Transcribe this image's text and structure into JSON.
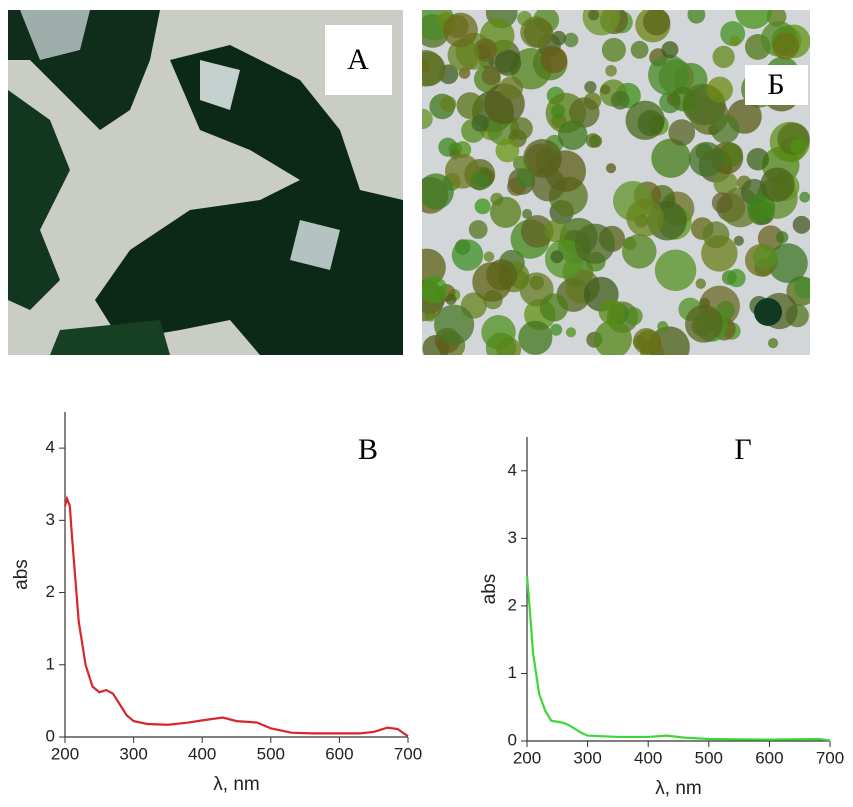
{
  "photos": [
    {
      "label": "А"
    },
    {
      "label": "Б"
    }
  ],
  "chart_data": [
    {
      "type": "line",
      "label": "В",
      "x_label": "λ, nm",
      "y_label": "abs",
      "xlim": [
        200,
        700
      ],
      "xticks": [
        200,
        300,
        400,
        500,
        600,
        700
      ],
      "ylim": [
        0,
        4.5
      ],
      "yticks": [
        0,
        1,
        2,
        3,
        4
      ],
      "series": [
        {
          "color": "#d9262b",
          "x": [
            200,
            203,
            207,
            210,
            215,
            220,
            230,
            240,
            250,
            260,
            270,
            280,
            290,
            300,
            320,
            350,
            380,
            400,
            430,
            450,
            480,
            500,
            530,
            560,
            600,
            630,
            650,
            670,
            685,
            700
          ],
          "values": [
            3.2,
            3.3,
            3.2,
            2.8,
            2.2,
            1.6,
            1.0,
            0.7,
            0.62,
            0.65,
            0.6,
            0.45,
            0.3,
            0.22,
            0.18,
            0.17,
            0.2,
            0.23,
            0.27,
            0.22,
            0.2,
            0.12,
            0.06,
            0.05,
            0.05,
            0.05,
            0.07,
            0.13,
            0.11,
            0.01
          ]
        }
      ]
    },
    {
      "type": "line",
      "label": "Г",
      "x_label": "λ, nm",
      "y_label": "abs",
      "xlim": [
        200,
        700
      ],
      "xticks": [
        200,
        300,
        400,
        500,
        600,
        700
      ],
      "ylim": [
        0,
        4.5
      ],
      "yticks": [
        0,
        1,
        2,
        3,
        4
      ],
      "series": [
        {
          "color": "#3fd63a",
          "x": [
            200,
            205,
            210,
            220,
            230,
            240,
            260,
            270,
            290,
            300,
            350,
            400,
            430,
            460,
            500,
            600,
            680,
            700
          ],
          "values": [
            2.45,
            1.9,
            1.3,
            0.7,
            0.45,
            0.3,
            0.27,
            0.23,
            0.12,
            0.08,
            0.06,
            0.06,
            0.08,
            0.05,
            0.03,
            0.02,
            0.03,
            0.01
          ]
        }
      ]
    }
  ]
}
